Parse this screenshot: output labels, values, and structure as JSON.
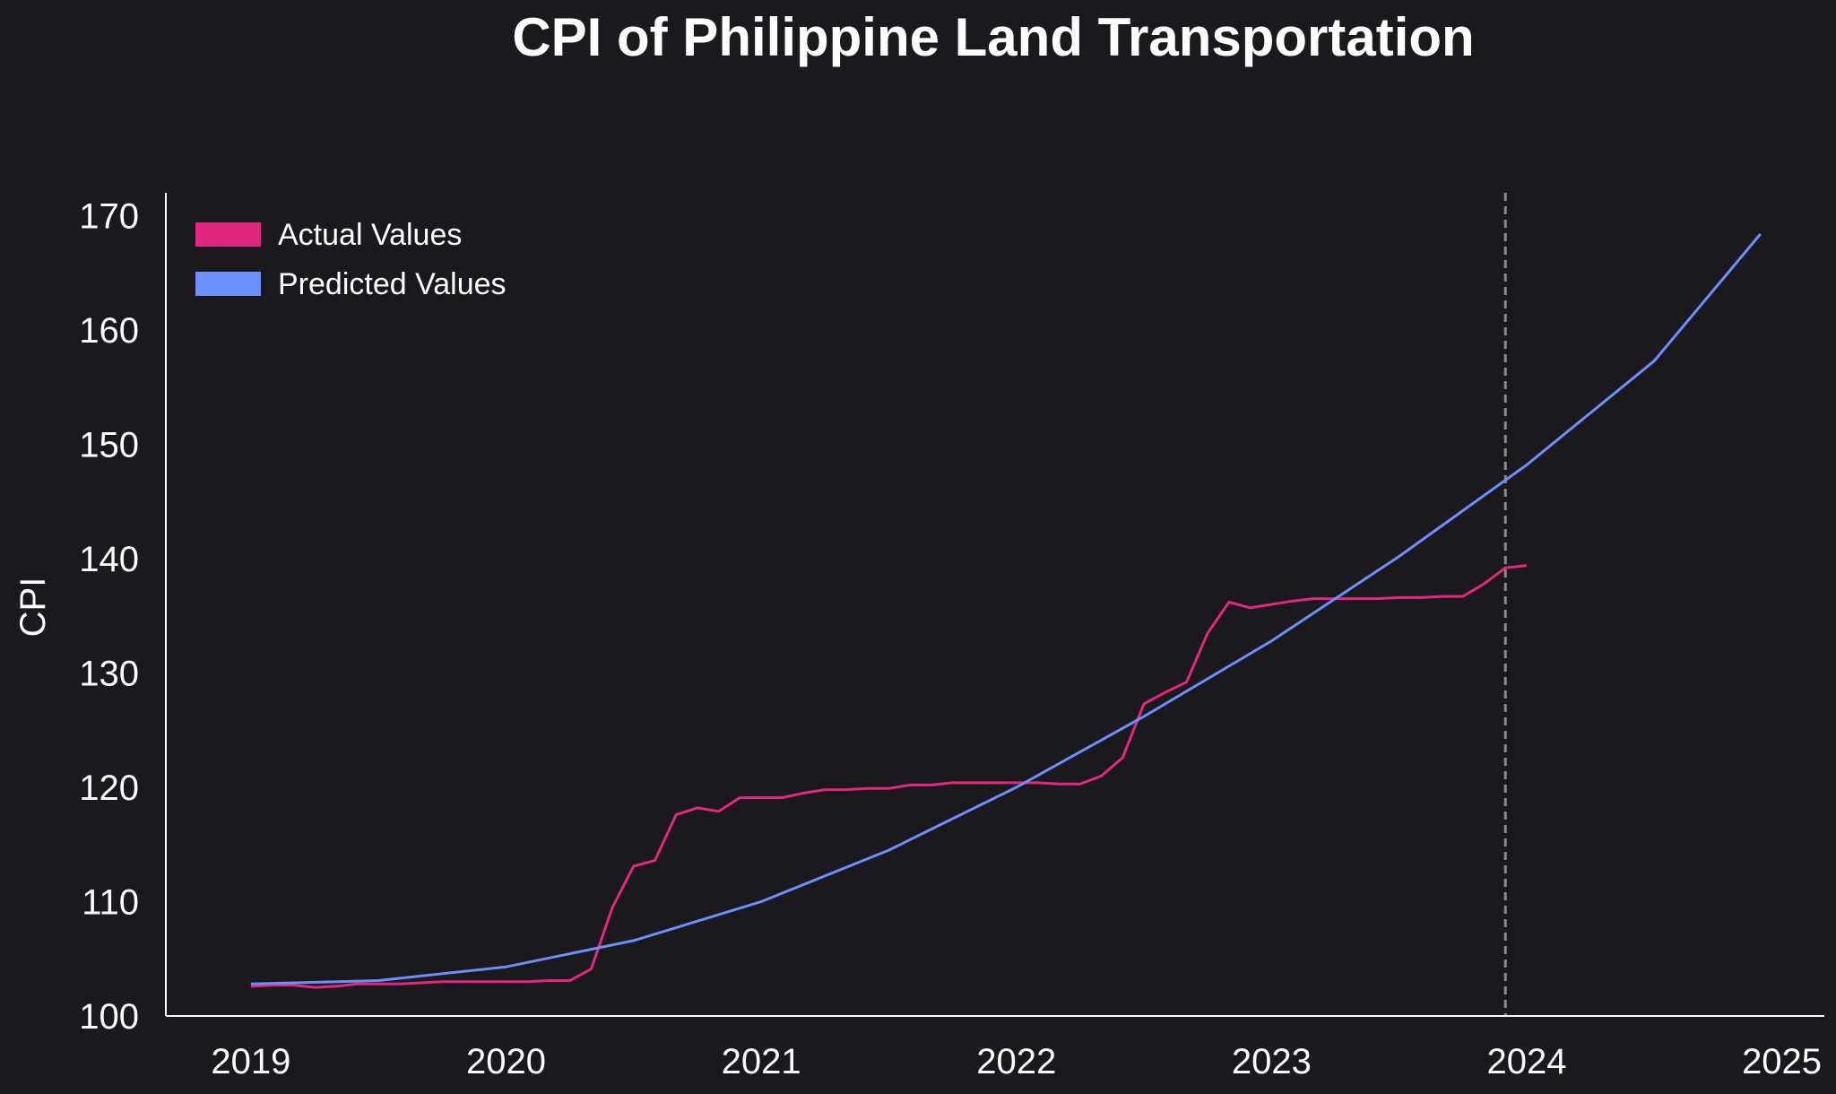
{
  "chart_data": {
    "type": "line",
    "title": "CPI of Philippine Land Transportation",
    "xlabel": "",
    "ylabel": "CPI",
    "xlim": [
      "2018-09",
      "2025-03"
    ],
    "ylim": [
      100,
      172
    ],
    "x_ticks": [
      "2019",
      "2020",
      "2021",
      "2022",
      "2023",
      "2024",
      "2025"
    ],
    "y_ticks": [
      100,
      110,
      120,
      130,
      140,
      150,
      160,
      170
    ],
    "grid": false,
    "legend_position": "top-left",
    "divider_date": "2023-12",
    "series": [
      {
        "name": "Actual Values",
        "color": "#e0297e",
        "points": [
          [
            "2019-01",
            102.6
          ],
          [
            "2019-02",
            102.7
          ],
          [
            "2019-03",
            102.7
          ],
          [
            "2019-04",
            102.5
          ],
          [
            "2019-05",
            102.6
          ],
          [
            "2019-06",
            102.8
          ],
          [
            "2019-07",
            102.8
          ],
          [
            "2019-08",
            102.8
          ],
          [
            "2019-09",
            102.9
          ],
          [
            "2019-10",
            103.0
          ],
          [
            "2019-11",
            103.0
          ],
          [
            "2019-12",
            103.0
          ],
          [
            "2020-01",
            103.0
          ],
          [
            "2020-02",
            103.0
          ],
          [
            "2020-03",
            103.1
          ],
          [
            "2020-04",
            103.1
          ],
          [
            "2020-05",
            104.1
          ],
          [
            "2020-06",
            109.5
          ],
          [
            "2020-07",
            113.1
          ],
          [
            "2020-08",
            113.6
          ],
          [
            "2020-09",
            117.6
          ],
          [
            "2020-10",
            118.2
          ],
          [
            "2020-11",
            117.9
          ],
          [
            "2020-12",
            119.1
          ],
          [
            "2021-01",
            119.1
          ],
          [
            "2021-02",
            119.1
          ],
          [
            "2021-03",
            119.5
          ],
          [
            "2021-04",
            119.8
          ],
          [
            "2021-05",
            119.8
          ],
          [
            "2021-06",
            119.9
          ],
          [
            "2021-07",
            119.9
          ],
          [
            "2021-08",
            120.2
          ],
          [
            "2021-09",
            120.2
          ],
          [
            "2021-10",
            120.4
          ],
          [
            "2021-11",
            120.4
          ],
          [
            "2021-12",
            120.4
          ],
          [
            "2022-01",
            120.4
          ],
          [
            "2022-02",
            120.4
          ],
          [
            "2022-03",
            120.3
          ],
          [
            "2022-04",
            120.3
          ],
          [
            "2022-05",
            121.0
          ],
          [
            "2022-06",
            122.6
          ],
          [
            "2022-07",
            127.3
          ],
          [
            "2022-08",
            128.3
          ],
          [
            "2022-09",
            129.2
          ],
          [
            "2022-10",
            133.5
          ],
          [
            "2022-11",
            136.2
          ],
          [
            "2022-12",
            135.7
          ],
          [
            "2023-01",
            136.0
          ],
          [
            "2023-02",
            136.3
          ],
          [
            "2023-03",
            136.5
          ],
          [
            "2023-04",
            136.5
          ],
          [
            "2023-05",
            136.5
          ],
          [
            "2023-06",
            136.5
          ],
          [
            "2023-07",
            136.6
          ],
          [
            "2023-08",
            136.6
          ],
          [
            "2023-09",
            136.7
          ],
          [
            "2023-10",
            136.7
          ],
          [
            "2023-11",
            137.8
          ],
          [
            "2023-12",
            139.2
          ],
          [
            "2024-01",
            139.4
          ]
        ]
      },
      {
        "name": "Predicted Values",
        "color": "#6b8ffc",
        "points": [
          [
            "2019-01",
            102.8
          ],
          [
            "2019-07",
            103.1
          ],
          [
            "2020-01",
            104.3
          ],
          [
            "2020-07",
            106.6
          ],
          [
            "2021-01",
            110.0
          ],
          [
            "2021-07",
            114.5
          ],
          [
            "2022-01",
            120.0
          ],
          [
            "2022-07",
            126.2
          ],
          [
            "2023-01",
            132.8
          ],
          [
            "2023-07",
            140.2
          ],
          [
            "2024-01",
            148.2
          ],
          [
            "2024-07",
            157.3
          ],
          [
            "2024-12",
            168.4
          ]
        ]
      }
    ]
  }
}
